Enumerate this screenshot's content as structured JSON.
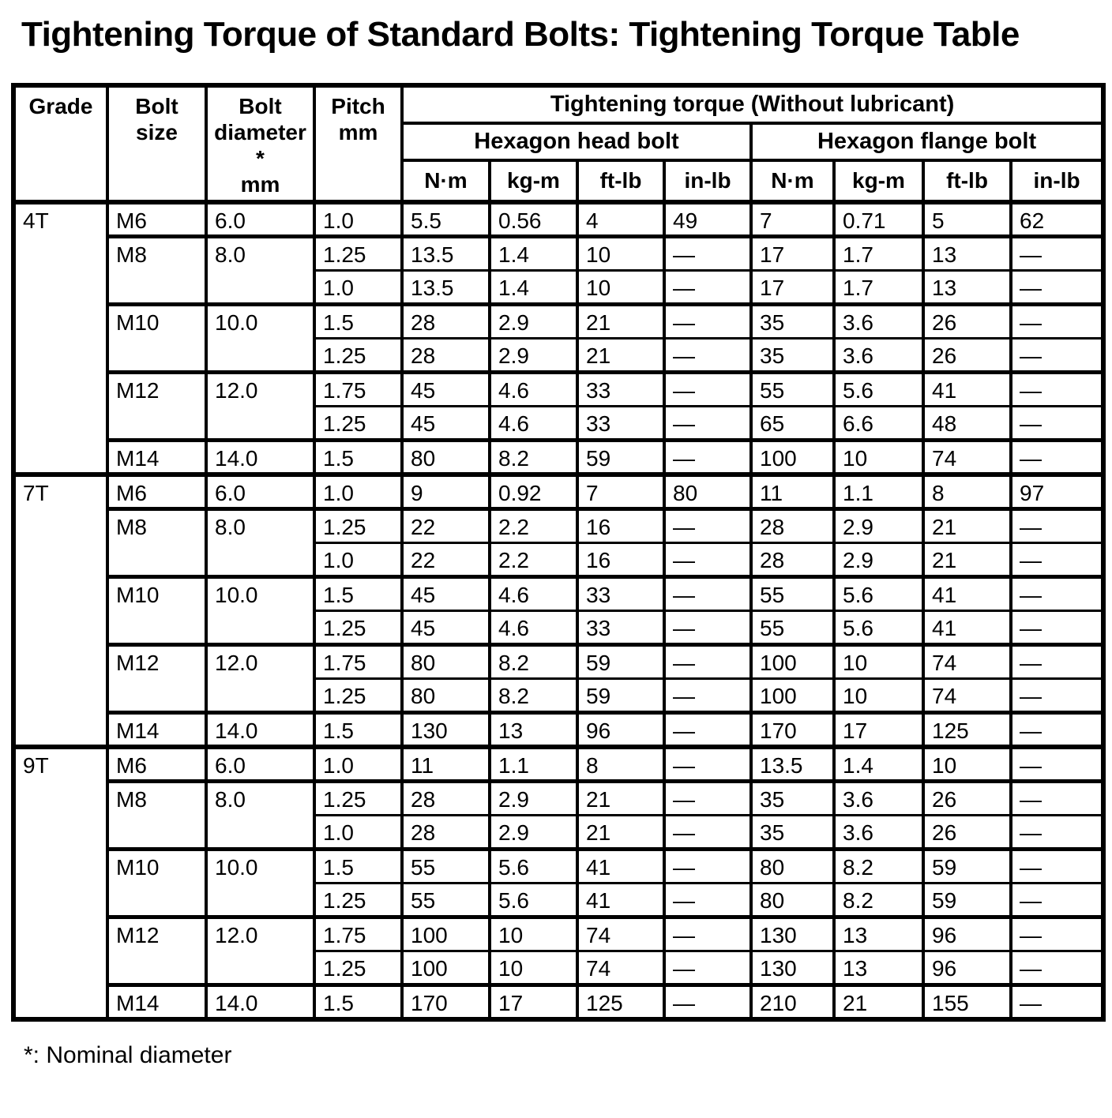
{
  "page": {
    "title": "Tightening Torque of Standard Bolts: Tightening Torque Table",
    "footnote": "*: Nominal diameter"
  },
  "table": {
    "headers": {
      "grade": "Grade",
      "bolt_size": "Bolt\nsize",
      "bolt_diameter": "Bolt\ndiameter\n*\nmm",
      "pitch": "Pitch\nmm",
      "torque_group": "Tightening torque (Without lubricant)",
      "head_bolt_group": "Hexagon head bolt",
      "flange_bolt_group": "Hexagon flange bolt",
      "units": [
        "N·m",
        "kg-m",
        "ft-lb",
        "in-lb",
        "N·m",
        "kg-m",
        "ft-lb",
        "in-lb"
      ]
    },
    "sections": [
      {
        "grade": "4T",
        "groups": [
          {
            "size": "M6",
            "diameter": "6.0",
            "rows": [
              [
                "1.0",
                "5.5",
                "0.56",
                "4",
                "49",
                "7",
                "0.71",
                "5",
                "62"
              ]
            ]
          },
          {
            "size": "M8",
            "diameter": "8.0",
            "rows": [
              [
                "1.25",
                "13.5",
                "1.4",
                "10",
                "—",
                "17",
                "1.7",
                "13",
                "—"
              ],
              [
                "1.0",
                "13.5",
                "1.4",
                "10",
                "—",
                "17",
                "1.7",
                "13",
                "—"
              ]
            ]
          },
          {
            "size": "M10",
            "diameter": "10.0",
            "rows": [
              [
                "1.5",
                "28",
                "2.9",
                "21",
                "—",
                "35",
                "3.6",
                "26",
                "—"
              ],
              [
                "1.25",
                "28",
                "2.9",
                "21",
                "—",
                "35",
                "3.6",
                "26",
                "—"
              ]
            ]
          },
          {
            "size": "M12",
            "diameter": "12.0",
            "rows": [
              [
                "1.75",
                "45",
                "4.6",
                "33",
                "—",
                "55",
                "5.6",
                "41",
                "—"
              ],
              [
                "1.25",
                "45",
                "4.6",
                "33",
                "—",
                "65",
                "6.6",
                "48",
                "—"
              ]
            ]
          },
          {
            "size": "M14",
            "diameter": "14.0",
            "rows": [
              [
                "1.5",
                "80",
                "8.2",
                "59",
                "—",
                "100",
                "10",
                "74",
                "—"
              ]
            ]
          }
        ]
      },
      {
        "grade": "7T",
        "groups": [
          {
            "size": "M6",
            "diameter": "6.0",
            "rows": [
              [
                "1.0",
                "9",
                "0.92",
                "7",
                "80",
                "11",
                "1.1",
                "8",
                "97"
              ]
            ]
          },
          {
            "size": "M8",
            "diameter": "8.0",
            "rows": [
              [
                "1.25",
                "22",
                "2.2",
                "16",
                "—",
                "28",
                "2.9",
                "21",
                "—"
              ],
              [
                "1.0",
                "22",
                "2.2",
                "16",
                "—",
                "28",
                "2.9",
                "21",
                "—"
              ]
            ]
          },
          {
            "size": "M10",
            "diameter": "10.0",
            "rows": [
              [
                "1.5",
                "45",
                "4.6",
                "33",
                "—",
                "55",
                "5.6",
                "41",
                "—"
              ],
              [
                "1.25",
                "45",
                "4.6",
                "33",
                "—",
                "55",
                "5.6",
                "41",
                "—"
              ]
            ]
          },
          {
            "size": "M12",
            "diameter": "12.0",
            "rows": [
              [
                "1.75",
                "80",
                "8.2",
                "59",
                "—",
                "100",
                "10",
                "74",
                "—"
              ],
              [
                "1.25",
                "80",
                "8.2",
                "59",
                "—",
                "100",
                "10",
                "74",
                "—"
              ]
            ]
          },
          {
            "size": "M14",
            "diameter": "14.0",
            "rows": [
              [
                "1.5",
                "130",
                "13",
                "96",
                "—",
                "170",
                "17",
                "125",
                "—"
              ]
            ]
          }
        ]
      },
      {
        "grade": "9T",
        "groups": [
          {
            "size": "M6",
            "diameter": "6.0",
            "rows": [
              [
                "1.0",
                "11",
                "1.1",
                "8",
                "—",
                "13.5",
                "1.4",
                "10",
                "—"
              ]
            ]
          },
          {
            "size": "M8",
            "diameter": "8.0",
            "rows": [
              [
                "1.25",
                "28",
                "2.9",
                "21",
                "—",
                "35",
                "3.6",
                "26",
                "—"
              ],
              [
                "1.0",
                "28",
                "2.9",
                "21",
                "—",
                "35",
                "3.6",
                "26",
                "—"
              ]
            ]
          },
          {
            "size": "M10",
            "diameter": "10.0",
            "rows": [
              [
                "1.5",
                "55",
                "5.6",
                "41",
                "—",
                "80",
                "8.2",
                "59",
                "—"
              ],
              [
                "1.25",
                "55",
                "5.6",
                "41",
                "—",
                "80",
                "8.2",
                "59",
                "—"
              ]
            ]
          },
          {
            "size": "M12",
            "diameter": "12.0",
            "rows": [
              [
                "1.75",
                "100",
                "10",
                "74",
                "—",
                "130",
                "13",
                "96",
                "—"
              ],
              [
                "1.25",
                "100",
                "10",
                "74",
                "—",
                "130",
                "13",
                "96",
                "—"
              ]
            ]
          },
          {
            "size": "M14",
            "diameter": "14.0",
            "rows": [
              [
                "1.5",
                "170",
                "17",
                "125",
                "—",
                "210",
                "21",
                "155",
                "—"
              ]
            ]
          }
        ]
      }
    ]
  }
}
